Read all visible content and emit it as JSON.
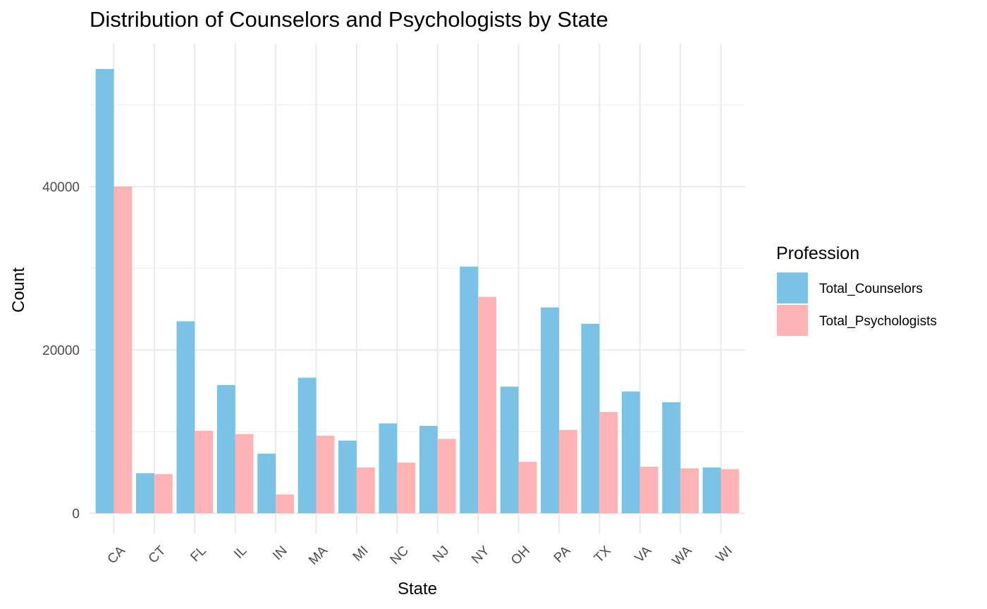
{
  "chart_data": {
    "type": "bar",
    "title": "Distribution of Counselors and Psychologists by State",
    "xlabel": "State",
    "ylabel": "Count",
    "categories": [
      "CA",
      "CT",
      "FL",
      "IL",
      "IN",
      "MA",
      "MI",
      "NC",
      "NJ",
      "NY",
      "OH",
      "PA",
      "TX",
      "VA",
      "WA",
      "WI"
    ],
    "series": [
      {
        "name": "Total_Counselors",
        "color": "#7AC3E6",
        "values": [
          54400,
          4900,
          23500,
          15700,
          7300,
          16600,
          8900,
          11000,
          10700,
          30200,
          15500,
          25200,
          23200,
          14900,
          13600,
          5600
        ]
      },
      {
        "name": "Total_Psychologists",
        "color": "#FFB3B5",
        "values": [
          40000,
          4800,
          10100,
          9700,
          2300,
          9500,
          5600,
          6200,
          9100,
          26500,
          6300,
          10200,
          12400,
          5700,
          5500,
          5400
        ]
      }
    ],
    "ylim": [
      -2500,
      57500
    ],
    "yticks": [
      0,
      20000,
      40000
    ],
    "ytick_labels": [
      "0",
      "20000",
      "40000"
    ],
    "grid": true,
    "legend_title": "Profession",
    "legend_position": "right"
  }
}
